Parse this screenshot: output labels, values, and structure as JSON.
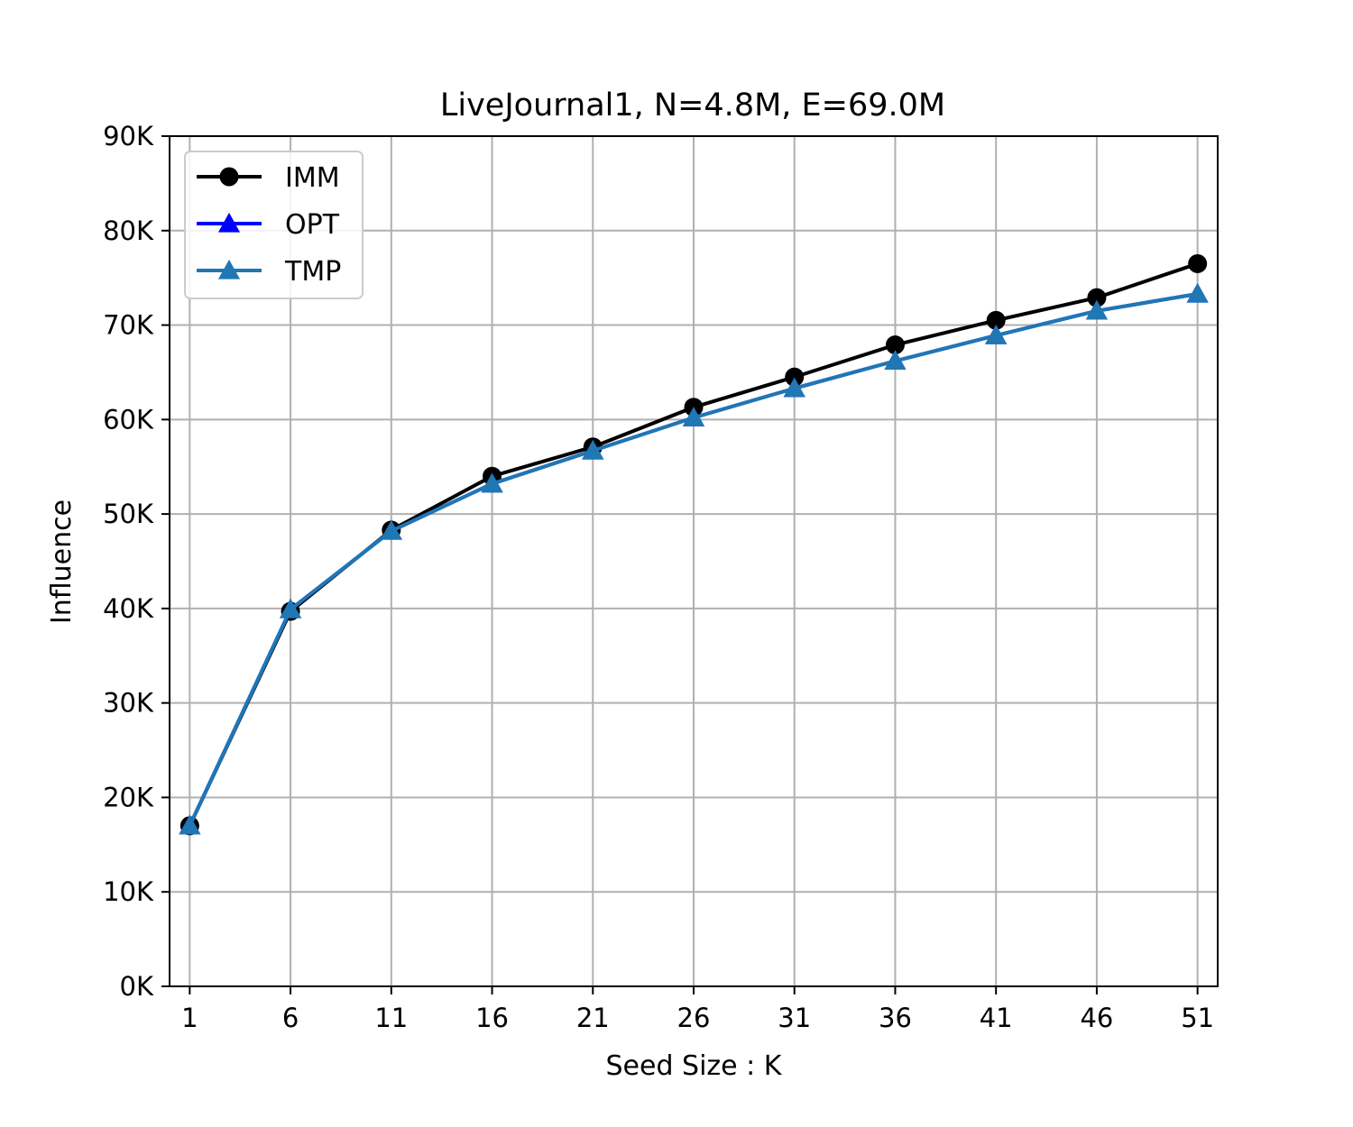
{
  "chart_data": {
    "type": "line",
    "title": "LiveJournal1, N=4.8M, E=69.0M",
    "xlabel": "Seed Size : K",
    "ylabel": "Influence",
    "x": [
      1,
      6,
      11,
      16,
      21,
      26,
      31,
      36,
      41,
      46,
      51
    ],
    "xlim": [
      0,
      52
    ],
    "ylim": [
      0,
      90000
    ],
    "yticks": [
      "0K",
      "10K",
      "20K",
      "30K",
      "40K",
      "50K",
      "60K",
      "70K",
      "80K",
      "90K"
    ],
    "grid": true,
    "legend_position": "top-left",
    "series": [
      {
        "name": "IMM",
        "color": "#000000",
        "marker": "circle",
        "values": [
          17000,
          39700,
          48300,
          54000,
          57100,
          61300,
          64500,
          67900,
          70500,
          72900,
          76500
        ]
      },
      {
        "name": "OPT",
        "color": "#0000ff",
        "marker": "triangle",
        "values": [
          17000,
          39900,
          48200,
          53200,
          56700,
          60200,
          63300,
          66200,
          68900,
          71500,
          73300
        ]
      },
      {
        "name": "TMP",
        "color": "#1f77b4",
        "marker": "triangle",
        "values": [
          17000,
          39900,
          48200,
          53200,
          56700,
          60200,
          63300,
          66200,
          68900,
          71500,
          73300
        ]
      }
    ]
  }
}
